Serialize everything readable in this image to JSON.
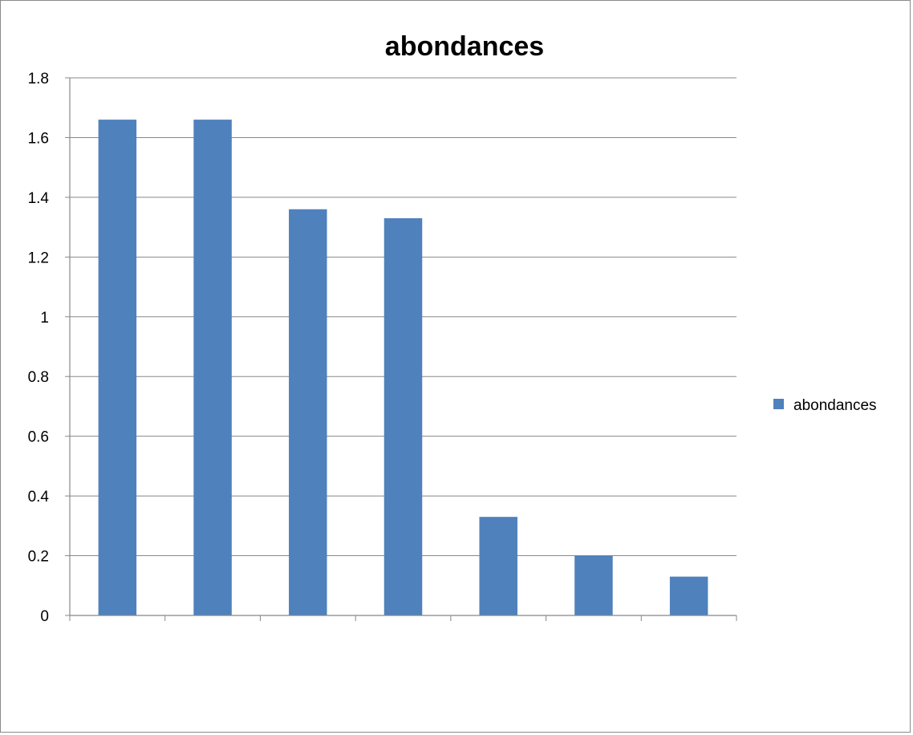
{
  "chart_data": {
    "type": "bar",
    "title": "abondances",
    "xlabel": "",
    "ylabel": "",
    "categories": [
      "",
      "",
      "",
      "",
      "",
      "",
      ""
    ],
    "series": [
      {
        "name": "abondances",
        "color": "#4F81BD",
        "values": [
          1.66,
          1.66,
          1.36,
          1.33,
          0.33,
          0.2,
          0.13
        ]
      }
    ],
    "ylim": [
      0,
      1.8
    ],
    "yticks": [
      0,
      0.2,
      0.4,
      0.6,
      0.8,
      1,
      1.2,
      1.4,
      1.6,
      1.8
    ],
    "ytick_labels": [
      "0",
      "0.2",
      "0.4",
      "0.6",
      "0.8",
      "1",
      "1.2",
      "1.4",
      "1.6",
      "1.8"
    ],
    "grid": true,
    "legend": "right"
  }
}
